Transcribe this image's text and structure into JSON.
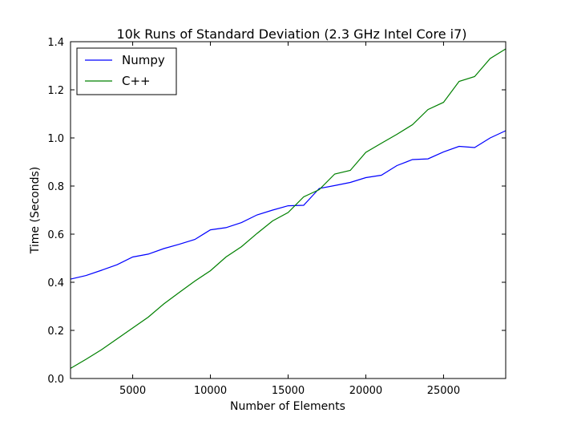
{
  "chart_data": {
    "type": "line",
    "title": "10k Runs of Standard Deviation (2.3 GHz Intel Core i7)",
    "xlabel": "Number of Elements",
    "ylabel": "Time (Seconds)",
    "xlim": [
      1000,
      29000
    ],
    "ylim": [
      0.0,
      1.4
    ],
    "xticks": [
      5000,
      10000,
      15000,
      20000,
      25000
    ],
    "yticks": [
      0.0,
      0.2,
      0.4,
      0.6,
      0.8,
      1.0,
      1.2,
      1.4
    ],
    "ytick_labels": [
      "0.0",
      "0.2",
      "0.4",
      "0.6",
      "0.8",
      "1.0",
      "1.2",
      "1.4"
    ],
    "grid": false,
    "legend_position": "top-left",
    "x": [
      1000,
      2000,
      3000,
      4000,
      5000,
      6000,
      7000,
      8000,
      9000,
      10000,
      11000,
      12000,
      13000,
      14000,
      15000,
      16000,
      17000,
      18000,
      19000,
      20000,
      21000,
      22000,
      23000,
      24000,
      25000,
      26000,
      27000,
      28000,
      29000
    ],
    "series": [
      {
        "name": "Numpy",
        "color": "#0000ff",
        "values": [
          0.413,
          0.428,
          0.45,
          0.473,
          0.505,
          0.517,
          0.54,
          0.558,
          0.578,
          0.618,
          0.627,
          0.648,
          0.68,
          0.7,
          0.718,
          0.72,
          0.79,
          0.802,
          0.815,
          0.835,
          0.845,
          0.885,
          0.91,
          0.913,
          0.942,
          0.965,
          0.96,
          1.0,
          1.03
        ]
      },
      {
        "name": "C++",
        "color": "#008000",
        "values": [
          0.042,
          0.08,
          0.12,
          0.165,
          0.21,
          0.255,
          0.31,
          0.358,
          0.405,
          0.448,
          0.505,
          0.548,
          0.603,
          0.655,
          0.69,
          0.755,
          0.785,
          0.85,
          0.865,
          0.94,
          0.978,
          1.015,
          1.055,
          1.118,
          1.148,
          1.235,
          1.255,
          1.33,
          1.37
        ]
      }
    ]
  }
}
